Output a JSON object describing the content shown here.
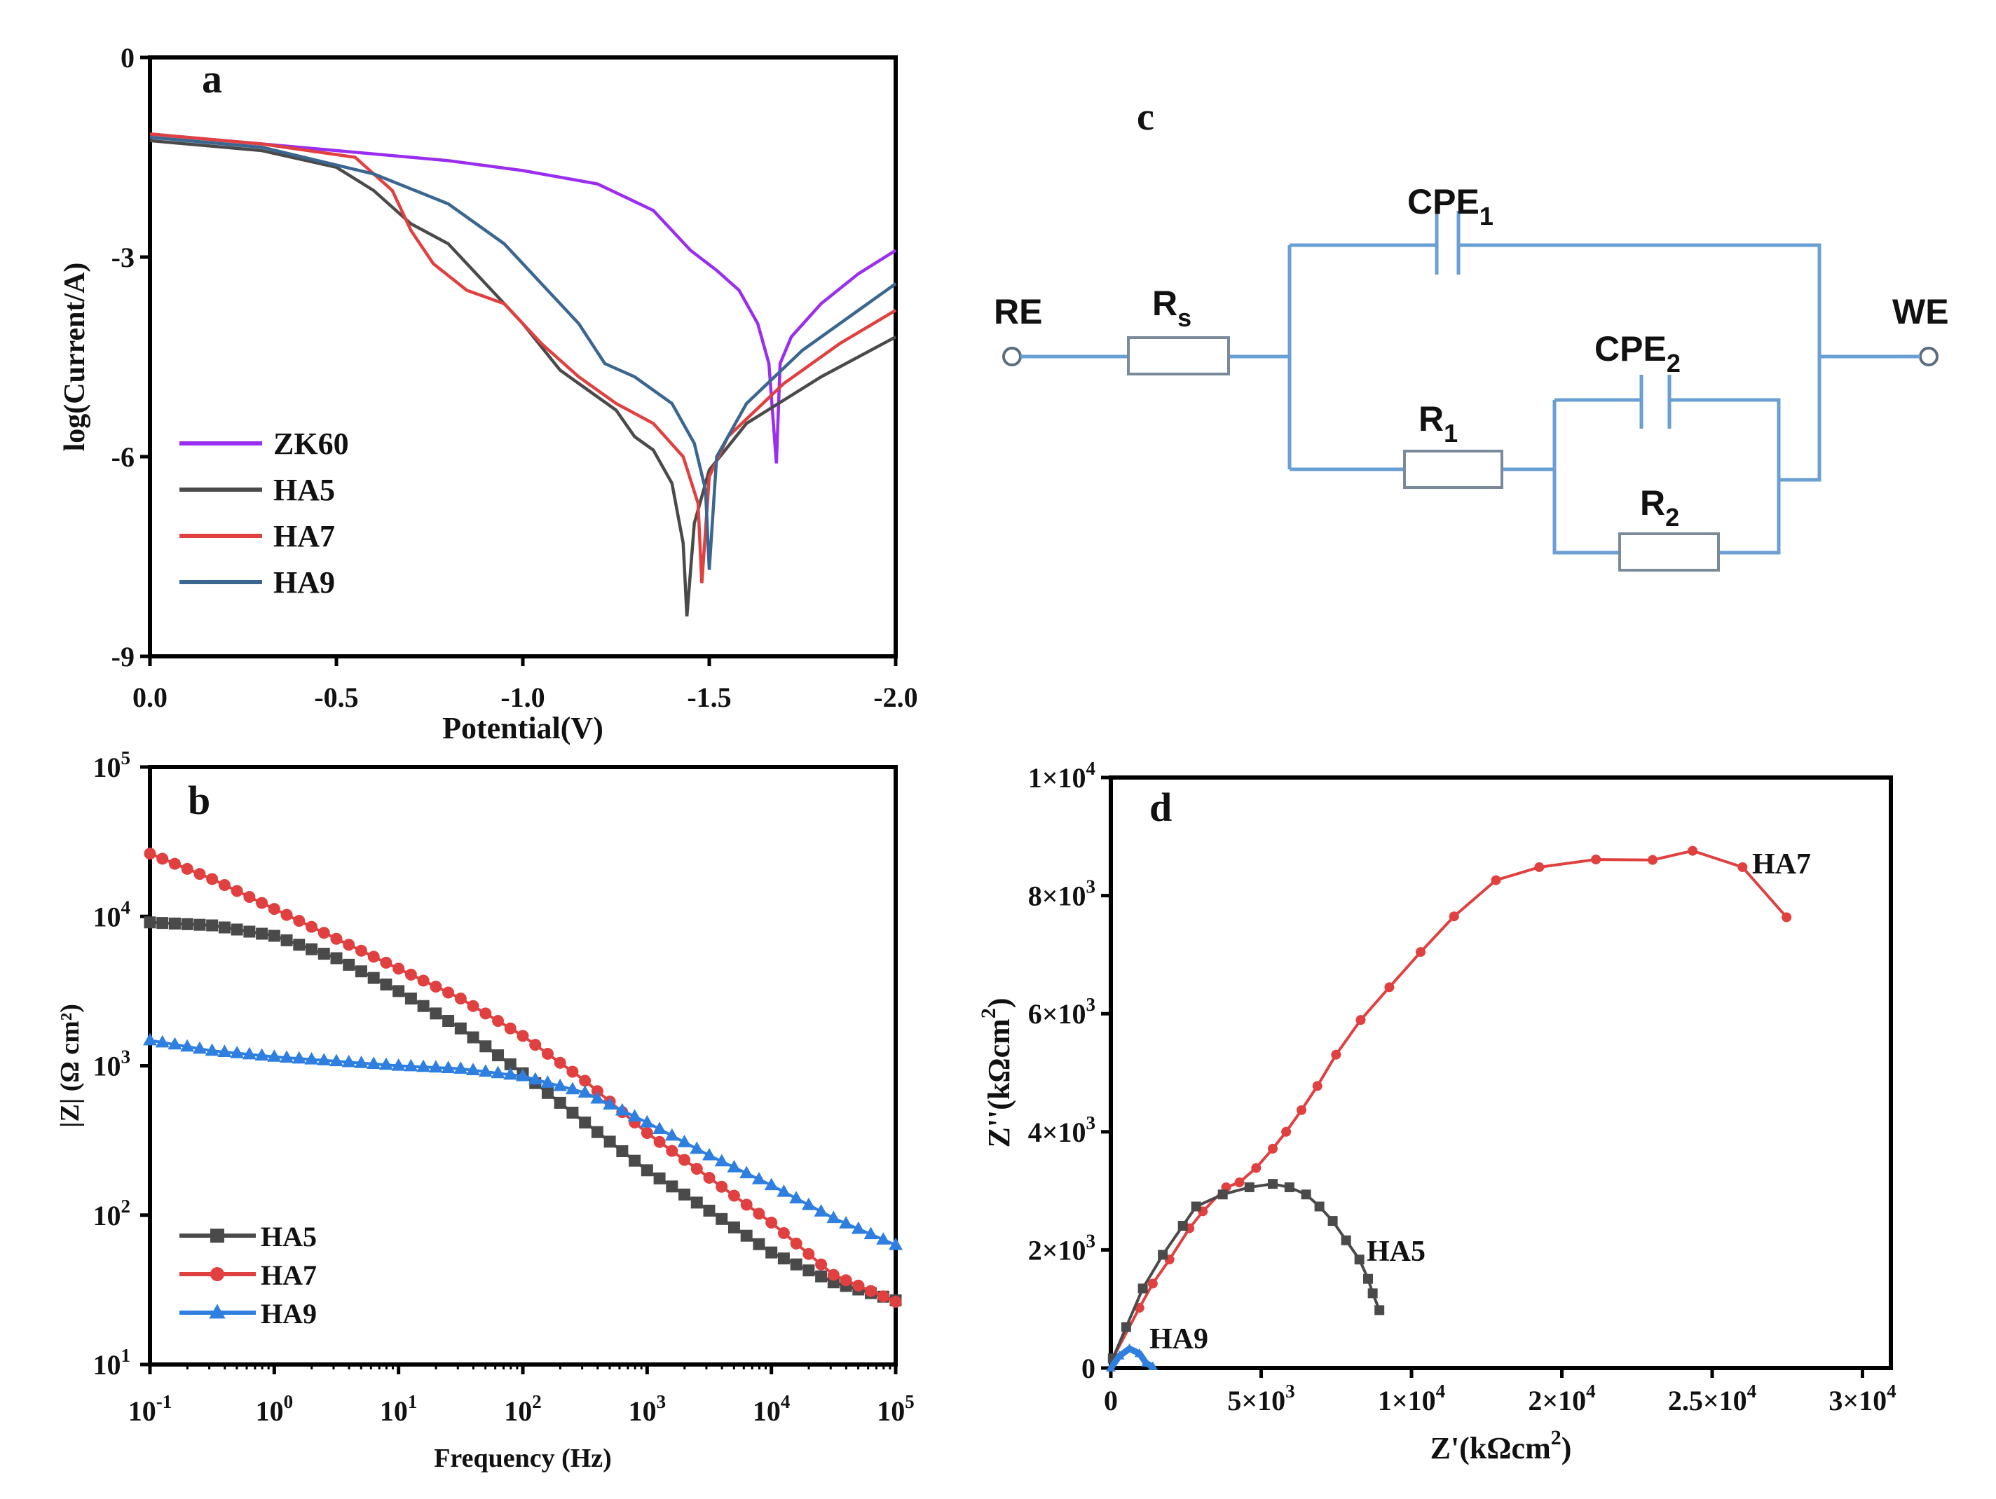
{
  "chart_data": [
    {
      "panel": "a",
      "type": "line",
      "panel_label": "a",
      "xlabel": "Potential(V)",
      "ylabel": "log(Current/A)",
      "xlim": [
        0,
        -2.0
      ],
      "ylim": [
        -9,
        0
      ],
      "xticks": [
        {
          "v": 0,
          "label": "0.0"
        },
        {
          "v": -0.5,
          "label": "-0.5"
        },
        {
          "v": -1.0,
          "label": "-1.0"
        },
        {
          "v": -1.5,
          "label": "-1.5"
        },
        {
          "v": -2.0,
          "label": "-2.0"
        }
      ],
      "yticks": [
        {
          "v": 0,
          "label": "0"
        },
        {
          "v": -3,
          "label": "-3"
        },
        {
          "v": -6,
          "label": "-6"
        },
        {
          "v": -9,
          "label": "-9"
        }
      ],
      "legend": "bottom-left",
      "series": [
        {
          "name": "ZK60",
          "color": "#9a2ef0",
          "points": [
            [
              0,
              -1.15
            ],
            [
              -0.3,
              -1.3
            ],
            [
              -0.5,
              -1.4
            ],
            [
              -0.8,
              -1.55
            ],
            [
              -1.0,
              -1.7
            ],
            [
              -1.2,
              -1.9
            ],
            [
              -1.35,
              -2.3
            ],
            [
              -1.45,
              -2.9
            ],
            [
              -1.52,
              -3.2
            ],
            [
              -1.58,
              -3.5
            ],
            [
              -1.63,
              -4.0
            ],
            [
              -1.66,
              -4.6
            ],
            [
              -1.68,
              -6.1
            ],
            [
              -1.69,
              -4.6
            ],
            [
              -1.72,
              -4.2
            ],
            [
              -1.8,
              -3.7
            ],
            [
              -1.9,
              -3.25
            ],
            [
              -2.0,
              -2.9
            ]
          ]
        },
        {
          "name": "HA5",
          "color": "#4a4a4a",
          "points": [
            [
              0,
              -1.25
            ],
            [
              -0.3,
              -1.4
            ],
            [
              -0.5,
              -1.65
            ],
            [
              -0.6,
              -2.0
            ],
            [
              -0.7,
              -2.5
            ],
            [
              -0.8,
              -2.8
            ],
            [
              -0.9,
              -3.4
            ],
            [
              -1.0,
              -4.0
            ],
            [
              -1.1,
              -4.7
            ],
            [
              -1.15,
              -4.9
            ],
            [
              -1.2,
              -5.1
            ],
            [
              -1.25,
              -5.3
            ],
            [
              -1.3,
              -5.7
            ],
            [
              -1.35,
              -5.9
            ],
            [
              -1.4,
              -6.4
            ],
            [
              -1.43,
              -7.3
            ],
            [
              -1.44,
              -8.4
            ],
            [
              -1.46,
              -7.0
            ],
            [
              -1.5,
              -6.2
            ],
            [
              -1.6,
              -5.5
            ],
            [
              -1.8,
              -4.8
            ],
            [
              -2.0,
              -4.2
            ]
          ]
        },
        {
          "name": "HA7",
          "color": "#e04040",
          "points": [
            [
              0,
              -1.15
            ],
            [
              -0.3,
              -1.3
            ],
            [
              -0.55,
              -1.5
            ],
            [
              -0.65,
              -2.0
            ],
            [
              -0.7,
              -2.6
            ],
            [
              -0.76,
              -3.1
            ],
            [
              -0.85,
              -3.5
            ],
            [
              -0.95,
              -3.7
            ],
            [
              -1.05,
              -4.3
            ],
            [
              -1.15,
              -4.8
            ],
            [
              -1.25,
              -5.2
            ],
            [
              -1.35,
              -5.5
            ],
            [
              -1.43,
              -6.0
            ],
            [
              -1.47,
              -6.7
            ],
            [
              -1.48,
              -7.9
            ],
            [
              -1.5,
              -6.3
            ],
            [
              -1.55,
              -5.7
            ],
            [
              -1.7,
              -4.9
            ],
            [
              -1.85,
              -4.3
            ],
            [
              -2.0,
              -3.8
            ]
          ]
        },
        {
          "name": "HA9",
          "color": "#3a6690",
          "points": [
            [
              0,
              -1.2
            ],
            [
              -0.3,
              -1.35
            ],
            [
              -0.6,
              -1.75
            ],
            [
              -0.8,
              -2.2
            ],
            [
              -0.95,
              -2.8
            ],
            [
              -1.05,
              -3.4
            ],
            [
              -1.15,
              -4.0
            ],
            [
              -1.22,
              -4.6
            ],
            [
              -1.3,
              -4.8
            ],
            [
              -1.4,
              -5.2
            ],
            [
              -1.46,
              -5.8
            ],
            [
              -1.49,
              -6.5
            ],
            [
              -1.5,
              -7.7
            ],
            [
              -1.52,
              -6.0
            ],
            [
              -1.6,
              -5.2
            ],
            [
              -1.75,
              -4.4
            ],
            [
              -1.9,
              -3.8
            ],
            [
              -2.0,
              -3.4
            ]
          ]
        }
      ]
    },
    {
      "panel": "b",
      "type": "line",
      "panel_label": "b",
      "xlabel": "Frequency (Hz)",
      "ylabel": "|Z| (Ω cm²)",
      "xscale": "log",
      "yscale": "log",
      "xlim_log10": [
        -1,
        5
      ],
      "ylim_log10": [
        1,
        5
      ],
      "xticks": [
        {
          "v": -1,
          "base": "10",
          "exp": "-1"
        },
        {
          "v": 0,
          "base": "10",
          "exp": "0"
        },
        {
          "v": 1,
          "base": "10",
          "exp": "1"
        },
        {
          "v": 2,
          "base": "10",
          "exp": "2"
        },
        {
          "v": 3,
          "base": "10",
          "exp": "3"
        },
        {
          "v": 4,
          "base": "10",
          "exp": "4"
        },
        {
          "v": 5,
          "base": "10",
          "exp": "5"
        }
      ],
      "yticks": [
        {
          "v": 1,
          "base": "10",
          "exp": "1"
        },
        {
          "v": 2,
          "base": "10",
          "exp": "2"
        },
        {
          "v": 3,
          "base": "10",
          "exp": "3"
        },
        {
          "v": 4,
          "base": "10",
          "exp": "4"
        },
        {
          "v": 5,
          "base": "10",
          "exp": "5"
        }
      ],
      "legend": "bottom-left",
      "series_note": "points are [log10 f, log10 |Z|]",
      "series": [
        {
          "name": "HA5",
          "color": "#4a4a4a",
          "marker": "square",
          "points": [
            [
              -1,
              3.96
            ],
            [
              -0.5,
              3.94
            ],
            [
              0,
              3.87
            ],
            [
              0.5,
              3.72
            ],
            [
              1,
              3.5
            ],
            [
              1.5,
              3.25
            ],
            [
              2,
              2.95
            ],
            [
              2.5,
              2.62
            ],
            [
              3,
              2.3
            ],
            [
              3.5,
              2.03
            ],
            [
              4,
              1.75
            ],
            [
              4.5,
              1.55
            ],
            [
              5,
              1.43
            ]
          ]
        },
        {
          "name": "HA7",
          "color": "#e04040",
          "marker": "circle",
          "points": [
            [
              -1,
              4.42
            ],
            [
              -0.5,
              4.25
            ],
            [
              0,
              4.05
            ],
            [
              0.5,
              3.85
            ],
            [
              1,
              3.65
            ],
            [
              1.5,
              3.45
            ],
            [
              2,
              3.2
            ],
            [
              2.5,
              2.9
            ],
            [
              3,
              2.55
            ],
            [
              3.5,
              2.25
            ],
            [
              4,
              1.95
            ],
            [
              4.5,
              1.6
            ],
            [
              5,
              1.42
            ]
          ]
        },
        {
          "name": "HA9",
          "color": "#2f7fe0",
          "marker": "triangle",
          "points": [
            [
              -1,
              3.17
            ],
            [
              -0.5,
              3.1
            ],
            [
              0,
              3.06
            ],
            [
              0.5,
              3.03
            ],
            [
              1,
              3.0
            ],
            [
              1.5,
              2.98
            ],
            [
              2,
              2.93
            ],
            [
              2.5,
              2.82
            ],
            [
              3,
              2.62
            ],
            [
              3.5,
              2.4
            ],
            [
              4,
              2.2
            ],
            [
              4.5,
              1.98
            ],
            [
              5,
              1.8
            ]
          ]
        }
      ]
    },
    {
      "panel": "d",
      "type": "scatter",
      "panel_label": "d",
      "xlabel": "Z'(kΩcm",
      "xlabel_exp": "2",
      "xlabel_end": ")",
      "ylabel": "Z''(kΩcm",
      "ylabel_exp": "2",
      "ylabel_end": ")",
      "xlim": [
        0,
        30000
      ],
      "ylim": [
        0,
        10000
      ],
      "xticks": [
        {
          "v": 0,
          "base": "0",
          "exp": ""
        },
        {
          "v": 5000,
          "base": "5×10",
          "exp": "3"
        },
        {
          "v": 10000,
          "base": "1×10",
          "exp": "4"
        },
        {
          "v": 20000,
          "base": "2×10",
          "exp": "4"
        },
        {
          "v": 25000,
          "base": "2.5×10",
          "exp": "4"
        },
        {
          "v": 30000,
          "base": "3×10",
          "exp": "4"
        }
      ],
      "yticks": [
        {
          "v": 0,
          "base": "0",
          "exp": ""
        },
        {
          "v": 2000,
          "base": "2×10",
          "exp": "3"
        },
        {
          "v": 4000,
          "base": "4×10",
          "exp": "3"
        },
        {
          "v": 6000,
          "base": "6×10",
          "exp": "3"
        },
        {
          "v": 8000,
          "base": "8×10",
          "exp": "3"
        },
        {
          "v": 10000,
          "base": "1×10",
          "exp": "4"
        }
      ],
      "series": [
        {
          "name": "HA7",
          "label": "HA7",
          "color": "#e04040",
          "marker": "circle",
          "points": [
            [
              66,
              163
            ],
            [
              950,
              1020
            ],
            [
              1395,
              1429
            ],
            [
              1950,
              1837
            ],
            [
              2615,
              2367
            ],
            [
              3060,
              2653
            ],
            [
              3835,
              3061
            ],
            [
              4277,
              3143
            ],
            [
              4832,
              3388
            ],
            [
              5385,
              3714
            ],
            [
              5830,
              4000
            ],
            [
              6340,
              4367
            ],
            [
              6870,
              4776
            ],
            [
              7490,
              5306
            ],
            [
              8310,
              5894
            ],
            [
              9265,
              6449
            ],
            [
              10610,
              7045
            ],
            [
              12830,
              7649
            ],
            [
              15620,
              8261
            ],
            [
              18500,
              8482
            ],
            [
              21135,
              8612
            ],
            [
              23020,
              8604
            ],
            [
              24350,
              8759
            ],
            [
              26010,
              8482
            ],
            [
              27475,
              7633
            ]
          ]
        },
        {
          "name": "HA5",
          "label": "HA5",
          "color": "#4a4a4a",
          "marker": "square",
          "points": [
            [
              66,
              163
            ],
            [
              510,
              694
            ],
            [
              1064,
              1347
            ],
            [
              1729,
              1918
            ],
            [
              2394,
              2408
            ],
            [
              2837,
              2735
            ],
            [
              3723,
              2939
            ],
            [
              4610,
              3061
            ],
            [
              5385,
              3118
            ],
            [
              5940,
              3061
            ],
            [
              6494,
              2939
            ],
            [
              6937,
              2735
            ],
            [
              7380,
              2490
            ],
            [
              7824,
              2163
            ],
            [
              8267,
              1837
            ],
            [
              8555,
              1510
            ],
            [
              8710,
              1265
            ],
            [
              8932,
              980
            ]
          ]
        },
        {
          "name": "HA9",
          "label": "HA9",
          "color": "#2f7fe0",
          "marker": "triangle",
          "points": [
            [
              0,
              0
            ],
            [
              288,
              204
            ],
            [
              620,
              327
            ],
            [
              950,
              245
            ],
            [
              1175,
              82
            ],
            [
              1395,
              24
            ]
          ]
        }
      ]
    }
  ],
  "circuit": {
    "panel_label": "c",
    "re": "RE",
    "we": "WE",
    "rs": {
      "base": "R",
      "sub": "s"
    },
    "cpe1": {
      "base": "CPE",
      "sub": "1"
    },
    "cpe2": {
      "base": "CPE",
      "sub": "2"
    },
    "r1": {
      "base": "R",
      "sub": "1"
    },
    "r2": {
      "base": "R",
      "sub": "2"
    },
    "wire_color": "#6a9fd4"
  }
}
